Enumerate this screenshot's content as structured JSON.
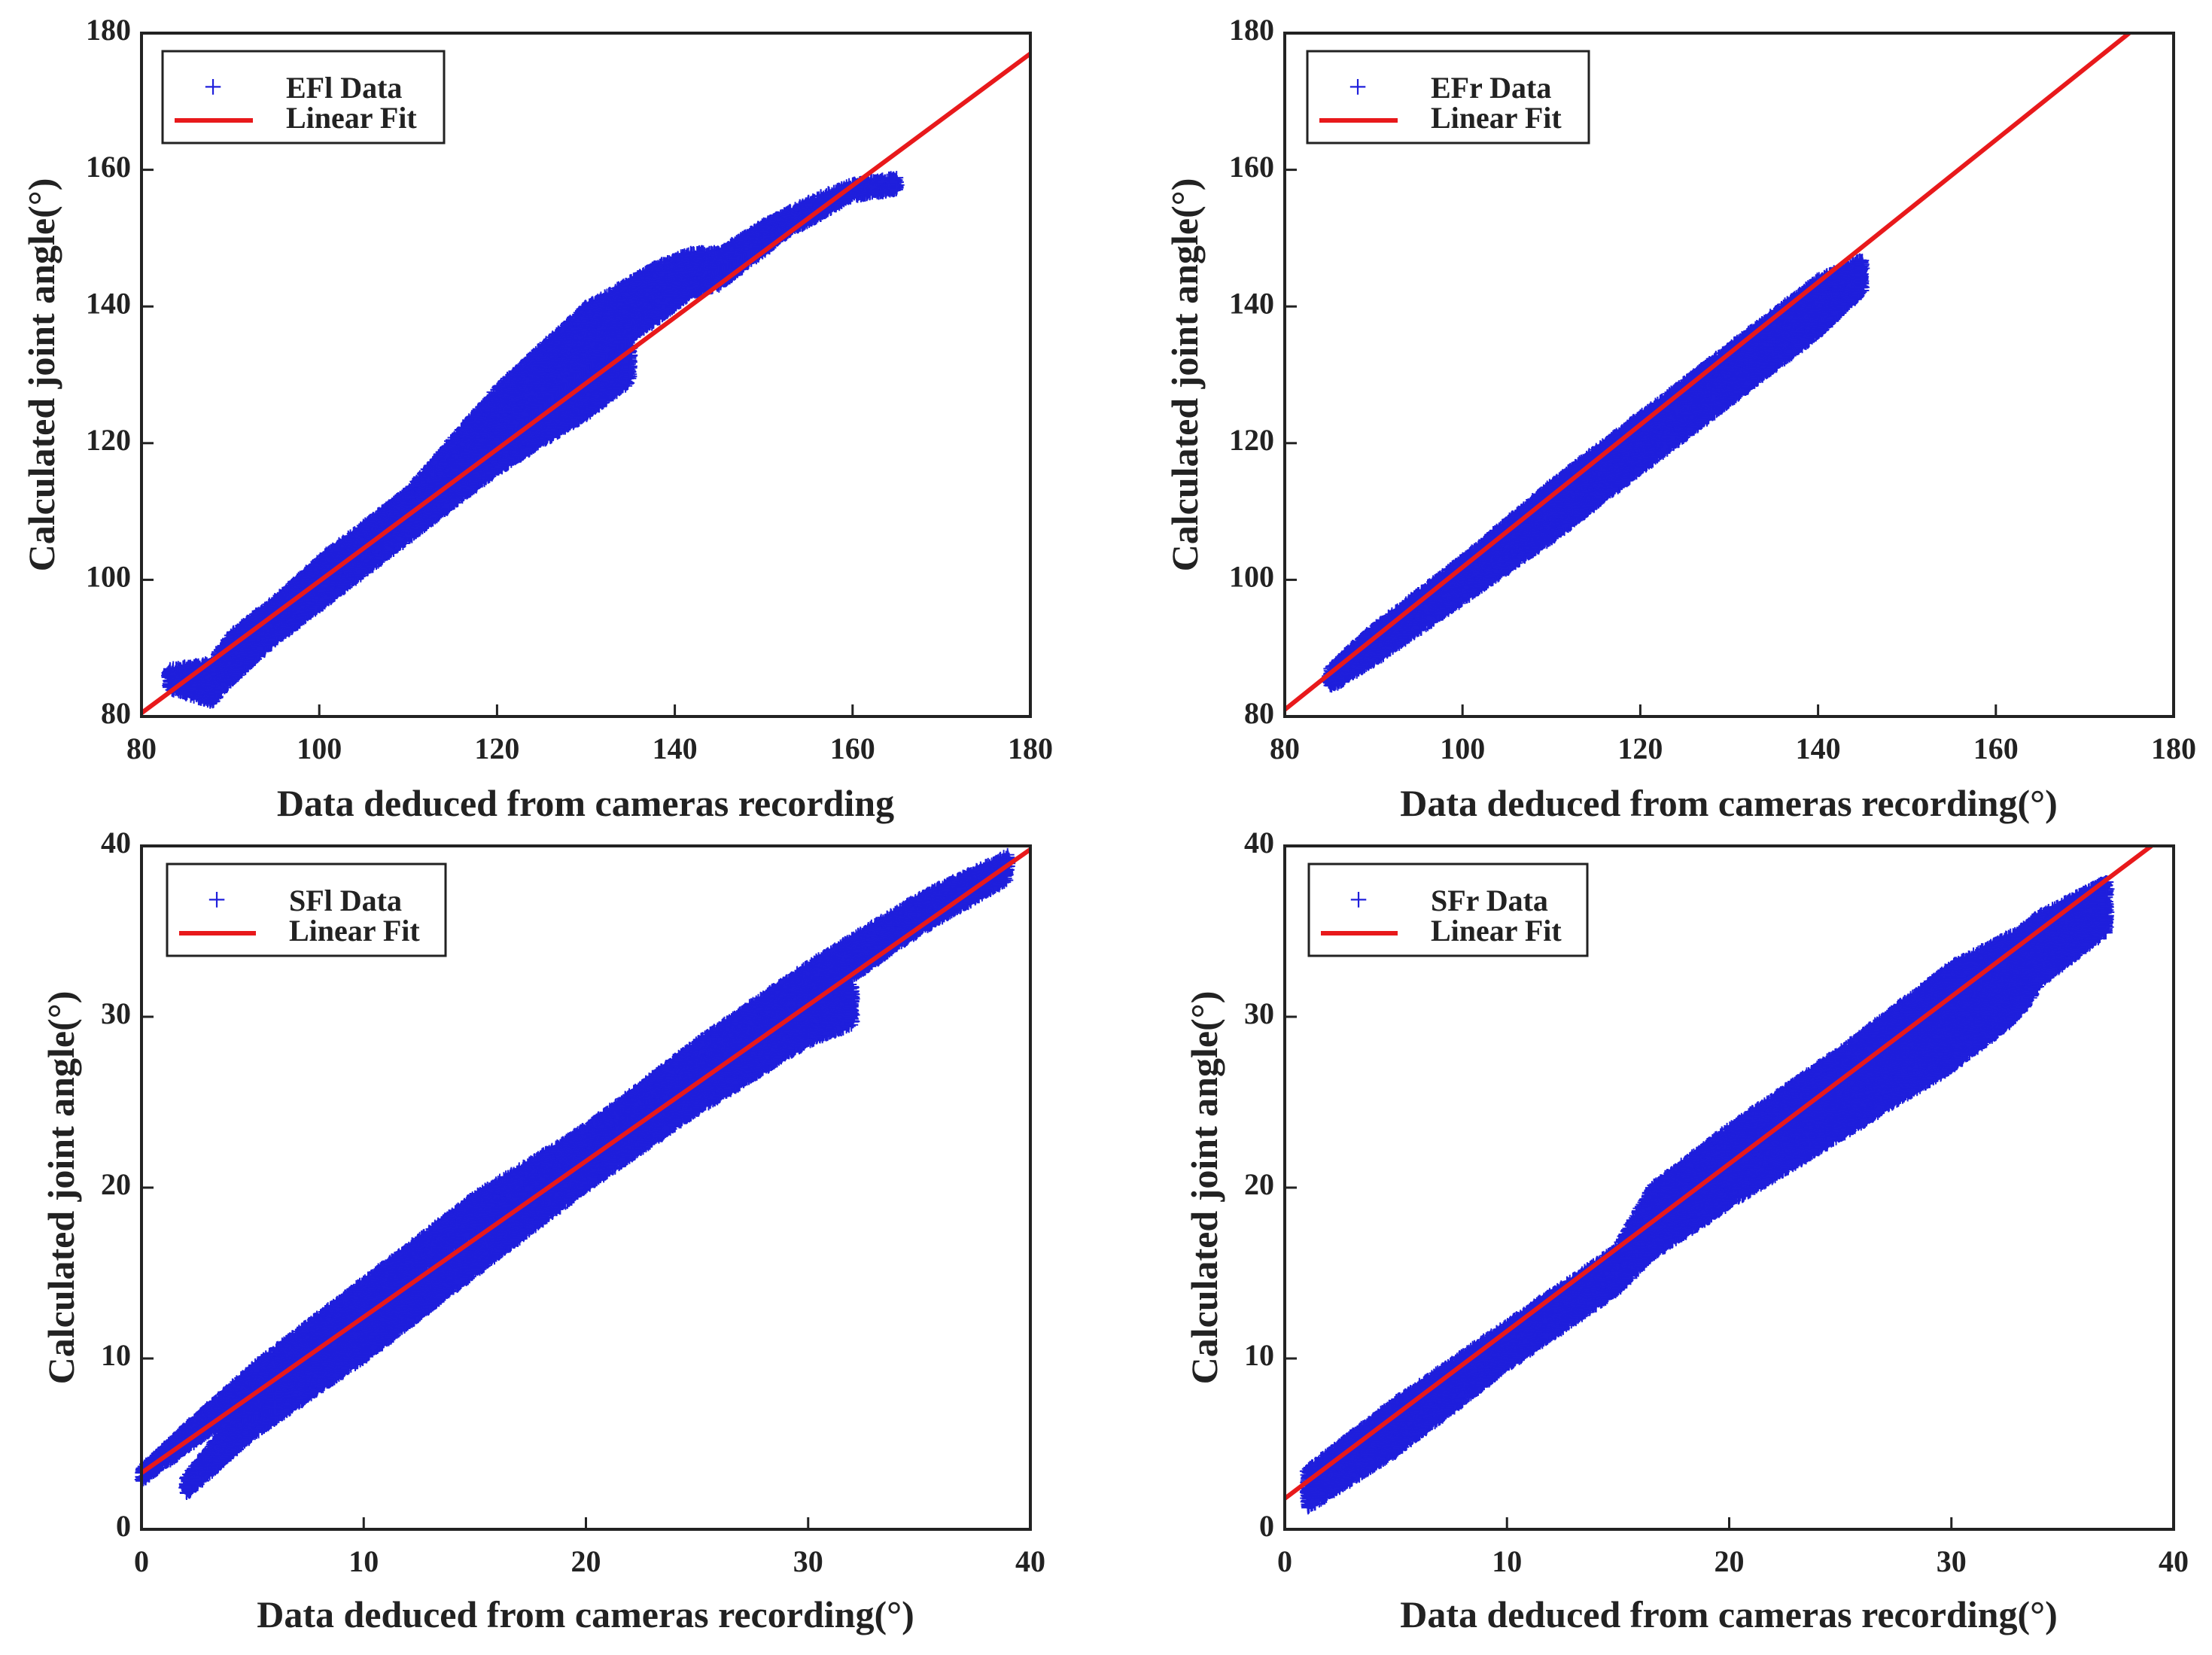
{
  "figure": {
    "colors": {
      "data": "#1f1fdc",
      "fit": "#e8191b",
      "axis": "#222222",
      "background": "#ffffff"
    },
    "marker_glyph": "+"
  },
  "chart_data": [
    {
      "type": "scatter",
      "panel": "top-left",
      "xlabel": "Data deduced from cameras recording",
      "ylabel": "Calculated joint angle(°)",
      "xlim": [
        80,
        180
      ],
      "ylim": [
        80,
        180
      ],
      "xticks": [
        "80",
        "100",
        "120",
        "140",
        "160",
        "180"
      ],
      "yticks": [
        "80",
        "100",
        "120",
        "140",
        "160",
        "180"
      ],
      "grid": false,
      "legend": {
        "position": "top-left",
        "entries": [
          "EFl Data",
          "Linear Fit"
        ]
      },
      "series": [
        {
          "name": "EFl Data",
          "marker": "+",
          "bands": [
            {
              "x": [
                83,
                88,
                90,
                95,
                100,
                110,
                120,
                130,
                135
              ],
              "y_low": [
                84,
                82,
                85,
                91,
                96,
                106,
                116,
                124,
                129
              ],
              "y_high": [
                87,
                88,
                92,
                97,
                103,
                113,
                124,
                134,
                136
              ]
            },
            {
              "x": [
                110,
                120,
                130,
                138,
                142,
                145,
                150,
                153
              ],
              "y_low": [
                110,
                120,
                131,
                138,
                142,
                143,
                148,
                151
              ],
              "y_high": [
                113,
                128,
                140,
                146,
                148,
                148,
                152,
                154
              ]
            },
            {
              "x": [
                144,
                150,
                156,
                160,
                165
              ],
              "y_low": [
                145,
                149,
                153,
                156,
                157
              ],
              "y_high": [
                147,
                152,
                156,
                158,
                159
              ]
            }
          ]
        },
        {
          "name": "Linear Fit",
          "x": [
            80,
            180
          ],
          "y": [
            80.5,
            177
          ]
        }
      ]
    },
    {
      "type": "scatter",
      "panel": "top-right",
      "xlabel": "Data deduced from cameras recording(°)",
      "ylabel": "Calculated joint angle(°)",
      "xlim": [
        80,
        180
      ],
      "ylim": [
        80,
        180
      ],
      "xticks": [
        "80",
        "100",
        "120",
        "140",
        "160",
        "180"
      ],
      "yticks": [
        "80",
        "100",
        "120",
        "140",
        "160",
        "180"
      ],
      "grid": false,
      "legend": {
        "position": "top-left",
        "entries": [
          "EFr Data",
          "Linear Fit"
        ]
      },
      "series": [
        {
          "name": "EFr Data",
          "marker": "+",
          "bands": [
            {
              "x": [
                85,
                90,
                100,
                110,
                120,
                130,
                140,
                145
              ],
              "y_low": [
                84,
                88,
                97,
                106,
                116,
                126,
                136,
                142
              ],
              "y_high": [
                87,
                93,
                103,
                114,
                124,
                134,
                144,
                147
              ]
            }
          ]
        },
        {
          "name": "Linear Fit",
          "x": [
            80,
            175
          ],
          "y": [
            81,
            180
          ]
        }
      ]
    },
    {
      "type": "scatter",
      "panel": "bottom-left",
      "xlabel": "Data deduced from cameras recording(°)",
      "ylabel": "Calculated joint angle(°)",
      "xlim": [
        0,
        40
      ],
      "ylim": [
        0,
        40
      ],
      "xticks": [
        "0",
        "10",
        "20",
        "30",
        "40"
      ],
      "yticks": [
        "0",
        "10",
        "20",
        "30",
        "40"
      ],
      "grid": false,
      "legend": {
        "position": "top-left",
        "entries": [
          "SFl Data",
          "Linear Fit"
        ]
      },
      "series": [
        {
          "name": "SFl Data",
          "marker": "+",
          "bands": [
            {
              "x": [
                0,
                5,
                10,
                15,
                20,
                25,
                30,
                35,
                39
              ],
              "y_low": [
                2.8,
                7.5,
                12.5,
                17.5,
                22,
                26.5,
                30.5,
                35,
                38
              ],
              "y_high": [
                3.6,
                9.5,
                14.5,
                19.5,
                23.5,
                28.5,
                33,
                37,
                39.5
              ]
            },
            {
              "x": [
                2,
                5,
                10,
                15,
                20,
                25,
                30,
                32
              ],
              "y_low": [
                2,
                5.5,
                10,
                15,
                20,
                24.5,
                28.5,
                29.5
              ],
              "y_high": [
                3,
                8,
                12,
                17,
                22,
                27,
                31,
                32
              ]
            },
            {
              "x": [
                4.5,
                6
              ],
              "y_low": [
                6.5,
                7
              ],
              "y_high": [
                7.5,
                8
              ]
            }
          ]
        },
        {
          "name": "Linear Fit",
          "x": [
            0,
            40
          ],
          "y": [
            3.3,
            39.8
          ]
        }
      ]
    },
    {
      "type": "scatter",
      "panel": "bottom-right",
      "xlabel": "Data deduced from cameras recording(°)",
      "ylabel": "Calculated joint angle(°)",
      "xlim": [
        0,
        40
      ],
      "ylim": [
        0,
        40
      ],
      "xticks": [
        "0",
        "10",
        "20",
        "30",
        "40"
      ],
      "yticks": [
        "0",
        "10",
        "20",
        "30",
        "40"
      ],
      "grid": false,
      "legend": {
        "position": "top-left",
        "entries": [
          "SFr Data",
          "Linear Fit"
        ]
      },
      "series": [
        {
          "name": "SFr Data",
          "marker": "+",
          "bands": [
            {
              "x": [
                1,
                5,
                10,
                15,
                16.5,
                20,
                25,
                30,
                33,
                34,
                37
              ],
              "y_low": [
                1.2,
                4.5,
                9.5,
                14,
                16,
                19,
                23,
                27,
                30,
                32,
                35
              ],
              "y_high": [
                3.5,
                7.5,
                12,
                16.5,
                20,
                23.5,
                28,
                33,
                35,
                36,
                38
              ]
            }
          ]
        },
        {
          "name": "Linear Fit",
          "x": [
            0,
            39
          ],
          "y": [
            1.8,
            40
          ]
        }
      ]
    }
  ]
}
